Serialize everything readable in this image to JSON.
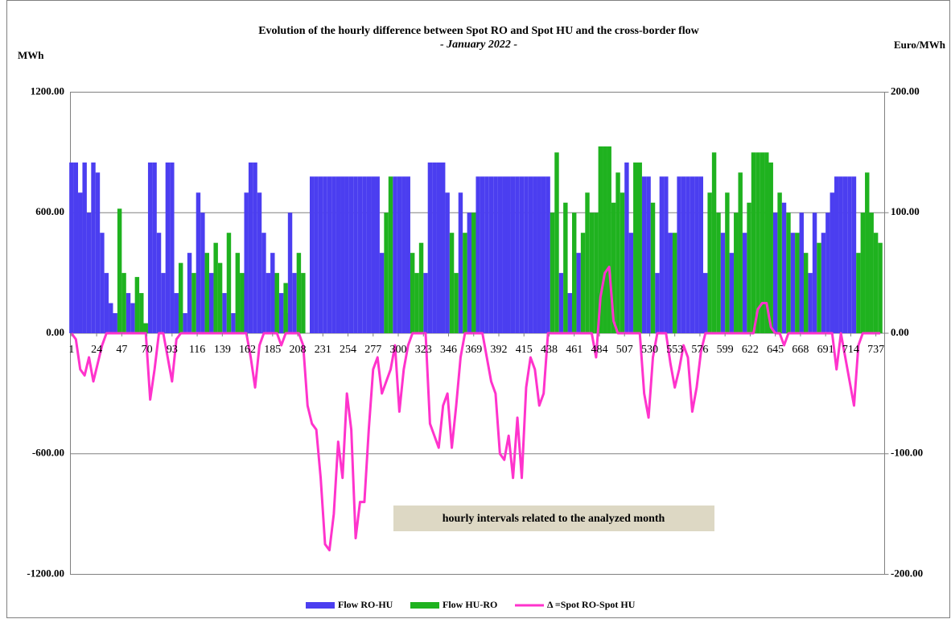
{
  "chart_data": {
    "type": "bar",
    "title": "Evolution of the hourly  difference between Spot RO and Spot HU and the cross-border flow",
    "subtitle": "- January 2022 -",
    "y_label": "MWh",
    "y2_label": "Euro/MWh",
    "annotation": "hourly intervals related to the analyzed month",
    "xlim": [
      0,
      745
    ],
    "xticks": [
      1,
      24,
      47,
      70,
      93,
      116,
      139,
      162,
      185,
      208,
      231,
      254,
      277,
      300,
      323,
      346,
      369,
      392,
      415,
      438,
      461,
      484,
      507,
      530,
      553,
      576,
      599,
      622,
      645,
      668,
      691,
      714,
      737
    ],
    "ylim": [
      -1200,
      1200
    ],
    "yticks": [
      {
        "value": -1200,
        "label": "-1200.00"
      },
      {
        "value": -600,
        "label": "-600.00"
      },
      {
        "value": 0,
        "label": "0.00"
      },
      {
        "value": 600,
        "label": "600.00"
      },
      {
        "value": 1200,
        "label": "1200.00"
      }
    ],
    "y2lim": [
      -200,
      200
    ],
    "y2ticks": [
      {
        "value": -200,
        "label": "-200.00"
      },
      {
        "value": -100,
        "label": "-100.00"
      },
      {
        "value": 0,
        "label": "0.00"
      },
      {
        "value": 100,
        "label": "100.00"
      },
      {
        "value": 200,
        "label": "200.00"
      }
    ],
    "grid": true,
    "legend": "bottom",
    "x": [
      1,
      5,
      9,
      13,
      17,
      21,
      25,
      29,
      33,
      37,
      41,
      45,
      49,
      53,
      57,
      61,
      65,
      69,
      73,
      77,
      81,
      85,
      89,
      93,
      97,
      101,
      105,
      109,
      113,
      117,
      121,
      125,
      129,
      133,
      137,
      141,
      145,
      149,
      153,
      157,
      161,
      165,
      169,
      173,
      177,
      181,
      185,
      189,
      193,
      197,
      201,
      205,
      209,
      213,
      217,
      221,
      225,
      229,
      233,
      237,
      241,
      245,
      249,
      253,
      257,
      261,
      265,
      269,
      273,
      277,
      281,
      285,
      289,
      293,
      297,
      301,
      305,
      309,
      313,
      317,
      321,
      325,
      329,
      333,
      337,
      341,
      345,
      349,
      353,
      357,
      361,
      365,
      369,
      373,
      377,
      381,
      385,
      389,
      393,
      397,
      401,
      405,
      409,
      413,
      417,
      421,
      425,
      429,
      433,
      437,
      441,
      445,
      449,
      453,
      457,
      461,
      465,
      469,
      473,
      477,
      481,
      485,
      489,
      493,
      497,
      501,
      505,
      509,
      513,
      517,
      521,
      525,
      529,
      533,
      537,
      541,
      545,
      549,
      553,
      557,
      561,
      565,
      569,
      573,
      577,
      581,
      585,
      589,
      593,
      597,
      601,
      605,
      609,
      613,
      617,
      621,
      625,
      629,
      633,
      637,
      641,
      645,
      649,
      653,
      657,
      661,
      665,
      669,
      673,
      677,
      681,
      685,
      689,
      693,
      697,
      701,
      705,
      709,
      713,
      717,
      721,
      725,
      729,
      733,
      737,
      741
    ],
    "series": [
      {
        "name": "Flow RO-HU",
        "color": "#4b3ef0",
        "kind": "bar",
        "values": [
          850,
          850,
          700,
          850,
          600,
          850,
          800,
          500,
          300,
          150,
          100,
          0,
          0,
          200,
          150,
          0,
          0,
          0,
          850,
          850,
          500,
          300,
          850,
          850,
          200,
          0,
          100,
          400,
          0,
          700,
          600,
          0,
          300,
          0,
          0,
          200,
          0,
          100,
          0,
          0,
          700,
          850,
          850,
          700,
          500,
          300,
          400,
          0,
          200,
          100,
          600,
          300,
          0,
          0,
          0,
          780,
          780,
          780,
          780,
          780,
          780,
          780,
          780,
          780,
          780,
          780,
          780,
          780,
          780,
          780,
          780,
          400,
          0,
          0,
          780,
          780,
          780,
          780,
          0,
          0,
          0,
          300,
          850,
          850,
          850,
          850,
          700,
          0,
          0,
          700,
          0,
          600,
          0,
          780,
          780,
          780,
          780,
          780,
          780,
          780,
          780,
          780,
          780,
          780,
          780,
          780,
          780,
          780,
          780,
          780,
          0,
          0,
          300,
          0,
          200,
          0,
          400,
          0,
          0,
          0,
          0,
          200,
          0,
          0,
          0,
          0,
          0,
          850,
          500,
          0,
          0,
          780,
          780,
          0,
          300,
          780,
          780,
          500,
          0,
          780,
          780,
          780,
          780,
          780,
          780,
          300,
          0,
          0,
          0,
          500,
          0,
          400,
          0,
          0,
          500,
          0,
          0,
          0,
          0,
          0,
          0,
          600,
          0,
          650,
          0,
          500,
          0,
          600,
          0,
          300,
          600,
          0,
          500,
          600,
          700,
          780,
          780,
          780,
          780,
          780,
          0,
          0,
          0,
          0,
          0,
          0
        ]
      },
      {
        "name": "Flow HU-RO",
        "color": "#1fb21f",
        "kind": "bar",
        "values": [
          0,
          0,
          0,
          0,
          0,
          0,
          0,
          0,
          0,
          0,
          0,
          620,
          300,
          0,
          0,
          280,
          200,
          50,
          0,
          0,
          0,
          0,
          0,
          0,
          0,
          350,
          0,
          0,
          300,
          0,
          0,
          400,
          0,
          450,
          350,
          0,
          500,
          0,
          400,
          300,
          0,
          0,
          0,
          0,
          0,
          0,
          0,
          300,
          0,
          250,
          0,
          0,
          400,
          300,
          0,
          0,
          0,
          0,
          0,
          0,
          0,
          0,
          0,
          0,
          0,
          0,
          0,
          0,
          0,
          0,
          0,
          0,
          600,
          780,
          0,
          0,
          0,
          0,
          400,
          300,
          450,
          0,
          0,
          0,
          0,
          0,
          0,
          500,
          300,
          0,
          500,
          0,
          600,
          0,
          0,
          0,
          0,
          0,
          0,
          0,
          0,
          0,
          0,
          0,
          0,
          0,
          0,
          0,
          0,
          0,
          600,
          900,
          0,
          650,
          0,
          600,
          0,
          500,
          700,
          600,
          600,
          930,
          930,
          930,
          650,
          800,
          700,
          0,
          0,
          850,
          850,
          0,
          0,
          650,
          0,
          0,
          0,
          0,
          500,
          0,
          0,
          0,
          0,
          0,
          0,
          0,
          700,
          900,
          600,
          0,
          700,
          0,
          600,
          800,
          0,
          650,
          900,
          900,
          900,
          900,
          850,
          0,
          700,
          0,
          600,
          0,
          500,
          0,
          400,
          0,
          0,
          450,
          0,
          0,
          0,
          0,
          0,
          0,
          0,
          0,
          400,
          600,
          800,
          600,
          500,
          450
        ]
      },
      {
        "name": "Δ =Spot  RO-Spot  HU",
        "color": "#ff33cc",
        "kind": "line",
        "axis": "y2",
        "values": [
          0,
          -5,
          -30,
          -35,
          -20,
          -40,
          -25,
          -10,
          0,
          0,
          0,
          0,
          0,
          0,
          0,
          0,
          0,
          0,
          -55,
          -30,
          0,
          0,
          -20,
          -40,
          -5,
          0,
          0,
          0,
          0,
          0,
          0,
          0,
          0,
          0,
          0,
          0,
          0,
          0,
          0,
          0,
          0,
          -20,
          -45,
          -10,
          0,
          0,
          0,
          0,
          -10,
          0,
          0,
          0,
          0,
          -10,
          -60,
          -75,
          -80,
          -120,
          -175,
          -180,
          -150,
          -90,
          -120,
          -50,
          -80,
          -170,
          -140,
          -140,
          -80,
          -30,
          -20,
          -50,
          -40,
          -30,
          -10,
          -65,
          -30,
          -10,
          0,
          0,
          0,
          0,
          -75,
          -85,
          -95,
          -60,
          -50,
          -95,
          -60,
          -20,
          0,
          0,
          0,
          0,
          0,
          -20,
          -40,
          -50,
          -100,
          -105,
          -85,
          -120,
          -70,
          -120,
          -45,
          -20,
          -30,
          -60,
          -50,
          0,
          0,
          0,
          0,
          0,
          0,
          0,
          0,
          0,
          0,
          0,
          -20,
          30,
          50,
          55,
          10,
          0,
          0,
          0,
          0,
          0,
          0,
          -50,
          -70,
          -20,
          0,
          0,
          0,
          -25,
          -45,
          -30,
          -10,
          -20,
          -65,
          -45,
          -15,
          0,
          0,
          0,
          0,
          0,
          0,
          0,
          0,
          0,
          0,
          0,
          0,
          20,
          25,
          25,
          5,
          0,
          0,
          -10,
          0,
          0,
          0,
          0,
          0,
          0,
          0,
          0,
          0,
          0,
          0,
          -30,
          0,
          -20,
          -40,
          -60,
          -10,
          0,
          0,
          0,
          0,
          0
        ]
      }
    ]
  }
}
